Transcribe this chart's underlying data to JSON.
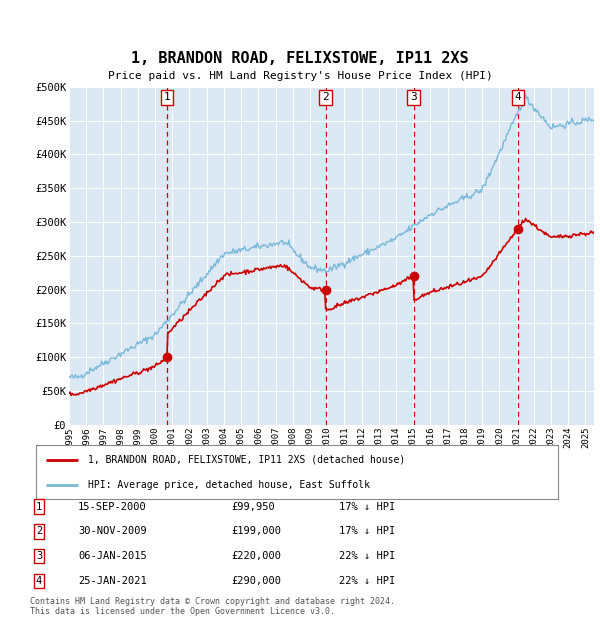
{
  "title": "1, BRANDON ROAD, FELIXSTOWE, IP11 2XS",
  "subtitle": "Price paid vs. HM Land Registry's House Price Index (HPI)",
  "background_color": "#dce9f5",
  "plot_bg_color": "#dce9f5",
  "ylim": [
    0,
    500000
  ],
  "yticks": [
    0,
    50000,
    100000,
    150000,
    200000,
    250000,
    300000,
    350000,
    400000,
    450000,
    500000
  ],
  "ytick_labels": [
    "£0",
    "£50K",
    "£100K",
    "£150K",
    "£200K",
    "£250K",
    "£300K",
    "£350K",
    "£400K",
    "£450K",
    "£500K"
  ],
  "hpi_color": "#7ab8d9",
  "price_color": "#cc0000",
  "dashed_color": "#cc0000",
  "purchases": [
    {
      "label": "1",
      "date_str": "15-SEP-2000",
      "price": 99950,
      "pct": "17%",
      "dir": "↓",
      "x_year": 2000.71
    },
    {
      "label": "2",
      "date_str": "30-NOV-2009",
      "price": 199000,
      "pct": "17%",
      "dir": "↓",
      "x_year": 2009.91
    },
    {
      "label": "3",
      "date_str": "06-JAN-2015",
      "price": 220000,
      "pct": "22%",
      "dir": "↓",
      "x_year": 2015.02
    },
    {
      "label": "4",
      "date_str": "25-JAN-2021",
      "price": 290000,
      "pct": "22%",
      "dir": "↓",
      "x_year": 2021.07
    }
  ],
  "legend_line1": "1, BRANDON ROAD, FELIXSTOWE, IP11 2XS (detached house)",
  "legend_line2": "HPI: Average price, detached house, East Suffolk",
  "footer1": "Contains HM Land Registry data © Crown copyright and database right 2024.",
  "footer2": "This data is licensed under the Open Government Licence v3.0.",
  "xlim_start": 1995.0,
  "xlim_end": 2025.5
}
